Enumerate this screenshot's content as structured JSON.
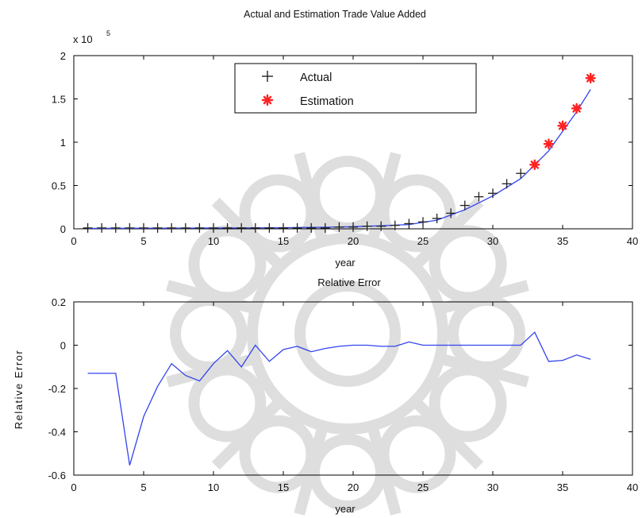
{
  "chart_data": [
    {
      "type": "line",
      "title": "Actual and Estimation Trade Value Added",
      "xlabel": "year",
      "ylabel": "",
      "y_scale_label": "x 10",
      "y_scale_exponent": "5",
      "xlim": [
        0,
        40
      ],
      "ylim": [
        0,
        2
      ],
      "x_ticks": [
        0,
        5,
        10,
        15,
        20,
        25,
        30,
        35,
        40
      ],
      "y_ticks": [
        0,
        0.5,
        1,
        1.5,
        2
      ],
      "x_tick_labels": [
        "0",
        "5",
        "10",
        "15",
        "20",
        "25",
        "30",
        "35",
        "40"
      ],
      "y_tick_labels": [
        "0",
        "0.5",
        "1",
        "1.5",
        "2"
      ],
      "grid": false,
      "legend": {
        "position": "top-center",
        "entries": [
          "Actual",
          "Estimation"
        ]
      },
      "series": [
        {
          "name": "Actual",
          "marker": "plus",
          "color": "#222222",
          "x": [
            1,
            2,
            3,
            4,
            5,
            6,
            7,
            8,
            9,
            10,
            11,
            12,
            13,
            14,
            15,
            16,
            17,
            18,
            19,
            20,
            21,
            22,
            23,
            24,
            25,
            26,
            27,
            28,
            29,
            30,
            31,
            32
          ],
          "y": [
            0.01,
            0.01,
            0.01,
            0.01,
            0.01,
            0.01,
            0.01,
            0.01,
            0.01,
            0.01,
            0.01,
            0.01,
            0.01,
            0.01,
            0.01,
            0.01,
            0.01,
            0.01,
            0.02,
            0.02,
            0.03,
            0.03,
            0.04,
            0.06,
            0.08,
            0.12,
            0.18,
            0.27,
            0.37,
            0.41,
            0.52,
            0.64
          ]
        },
        {
          "name": "Estimation",
          "marker": "star",
          "color": "#ff2222",
          "x": [
            33,
            34,
            35,
            36,
            37
          ],
          "y": [
            0.74,
            0.98,
            1.19,
            1.39,
            1.74
          ]
        },
        {
          "name": "",
          "line": "solid",
          "color": "#3344ee",
          "x": [
            1,
            4,
            8,
            12,
            15,
            18,
            20,
            22,
            24,
            26,
            28,
            30,
            32,
            34,
            36,
            37
          ],
          "y": [
            0.005,
            0.006,
            0.008,
            0.01,
            0.013,
            0.018,
            0.025,
            0.035,
            0.05,
            0.1,
            0.22,
            0.38,
            0.58,
            0.9,
            1.35,
            1.61
          ]
        }
      ]
    },
    {
      "type": "line",
      "title": "Relative Error",
      "xlabel": "year",
      "ylabel": "Relative Error",
      "xlim": [
        0,
        40
      ],
      "ylim": [
        -0.6,
        0.2
      ],
      "x_ticks": [
        0,
        5,
        10,
        15,
        20,
        25,
        30,
        35,
        40
      ],
      "y_ticks": [
        -0.6,
        -0.4,
        -0.2,
        0,
        0.2
      ],
      "x_tick_labels": [
        "0",
        "5",
        "10",
        "15",
        "20",
        "25",
        "30",
        "35",
        "40"
      ],
      "y_tick_labels": [
        "-0.6",
        "-0.4",
        "-0.2",
        "0",
        "0.2"
      ],
      "grid": false,
      "series": [
        {
          "name": "",
          "color": "#3344ee",
          "x": [
            1,
            2,
            3,
            4,
            5,
            6,
            7,
            8,
            9,
            10,
            11,
            12,
            13,
            14,
            15,
            16,
            17,
            18,
            19,
            20,
            21,
            22,
            23,
            24,
            25,
            26,
            27,
            28,
            29,
            30,
            31,
            32,
            33,
            34,
            35,
            36,
            37
          ],
          "y": [
            -0.13,
            -0.13,
            -0.13,
            -0.555,
            -0.33,
            -0.19,
            -0.085,
            -0.14,
            -0.165,
            -0.085,
            -0.025,
            -0.1,
            0,
            -0.075,
            -0.02,
            -0.005,
            -0.03,
            -0.015,
            -0.005,
            0,
            0,
            -0.005,
            -0.005,
            0.015,
            0,
            0,
            0,
            0,
            0,
            0,
            0,
            0,
            0.06,
            -0.075,
            -0.07,
            -0.045,
            -0.065
          ]
        }
      ]
    }
  ]
}
